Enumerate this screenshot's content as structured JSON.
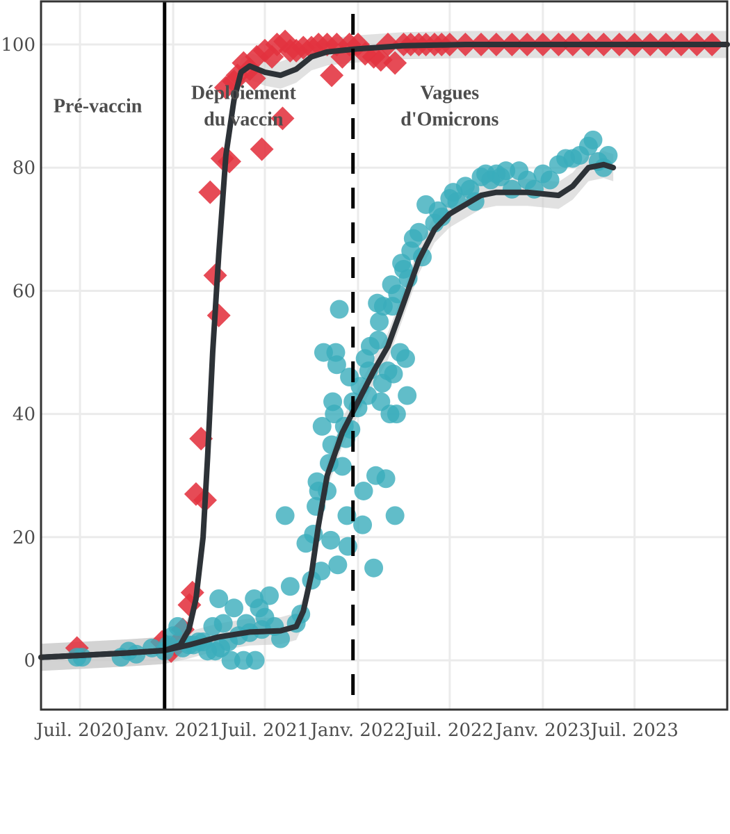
{
  "chart_data": {
    "type": "scatter",
    "title": "",
    "xlabel": "",
    "ylabel": "",
    "xlim": [
      "2020-04-15",
      "2023-12-31"
    ],
    "ylim": [
      -8,
      107
    ],
    "grid": true,
    "legend": "none",
    "x_ticks": [
      {
        "date": "2020-07-01",
        "label": "Juil. 2020"
      },
      {
        "date": "2021-01-01",
        "label": "Janv. 2021"
      },
      {
        "date": "2021-07-01",
        "label": "Juil. 2021"
      },
      {
        "date": "2022-01-01",
        "label": "Janv. 2022"
      },
      {
        "date": "2022-07-01",
        "label": "Juil. 2022"
      },
      {
        "date": "2023-01-01",
        "label": "Janv. 2023"
      },
      {
        "date": "2023-07-01",
        "label": "Juil. 2023"
      }
    ],
    "y_ticks": [
      0,
      20,
      40,
      60,
      80,
      100
    ],
    "vertical_lines": [
      {
        "date": "2020-12-15",
        "style": "solid"
      },
      {
        "date": "2021-12-22",
        "style": "dashed"
      }
    ],
    "annotations": [
      {
        "lines": [
          "Pré-vaccin"
        ],
        "date": "2020-08-05",
        "y": 90
      },
      {
        "lines": [
          "Déploiement",
          "du vaccin"
        ],
        "date": "2021-05-20",
        "y": 90
      },
      {
        "lines": [
          "Vagues",
          "d'Omicrons"
        ],
        "date": "2022-07-01",
        "y": 90
      }
    ],
    "colors": {
      "series_a": "#e3323f",
      "series_b": "#3aadbb",
      "trend": "#2d3237",
      "band": "#c8c8c8"
    },
    "series": [
      {
        "marker": "diamond",
        "color": "#e3323f",
        "points": [
          [
            "2020-06-25",
            2
          ],
          [
            "2020-12-10",
            3
          ],
          [
            "2020-12-28",
            1.5
          ],
          [
            "2021-01-05",
            2.5
          ],
          [
            "2021-01-20",
            5
          ],
          [
            "2021-02-02",
            9
          ],
          [
            "2021-02-08",
            11
          ],
          [
            "2021-02-15",
            27
          ],
          [
            "2021-02-25",
            36
          ],
          [
            "2021-03-05",
            26
          ],
          [
            "2021-03-15",
            76
          ],
          [
            "2021-03-25",
            62.5
          ],
          [
            "2021-04-01",
            56
          ],
          [
            "2021-04-08",
            81.5
          ],
          [
            "2021-04-15",
            93
          ],
          [
            "2021-04-22",
            81
          ],
          [
            "2021-05-01",
            94
          ],
          [
            "2021-05-08",
            95
          ],
          [
            "2021-05-20",
            97
          ],
          [
            "2021-06-01",
            96
          ],
          [
            "2021-06-10",
            94.5
          ],
          [
            "2021-06-15",
            98
          ],
          [
            "2021-06-25",
            83
          ],
          [
            "2021-07-01",
            99
          ],
          [
            "2021-07-15",
            98
          ],
          [
            "2021-07-25",
            100
          ],
          [
            "2021-08-05",
            88
          ],
          [
            "2021-08-10",
            100.5
          ],
          [
            "2021-08-20",
            99
          ],
          [
            "2021-09-01",
            99
          ],
          [
            "2021-09-15",
            99.5
          ],
          [
            "2021-10-01",
            99.5
          ],
          [
            "2021-10-15",
            100
          ],
          [
            "2021-11-01",
            100
          ],
          [
            "2021-11-10",
            95
          ],
          [
            "2021-11-20",
            100
          ],
          [
            "2021-12-01",
            98
          ],
          [
            "2021-12-15",
            100
          ],
          [
            "2022-01-01",
            100
          ],
          [
            "2022-01-15",
            98.5
          ],
          [
            "2022-02-01",
            98
          ],
          [
            "2022-02-15",
            97.5
          ],
          [
            "2022-03-01",
            100
          ],
          [
            "2022-03-15",
            97
          ],
          [
            "2022-04-01",
            100
          ],
          [
            "2022-04-15",
            100
          ],
          [
            "2022-05-01",
            100
          ],
          [
            "2022-05-15",
            100
          ],
          [
            "2022-06-01",
            100
          ],
          [
            "2022-06-15",
            100
          ],
          [
            "2022-07-01",
            100
          ],
          [
            "2022-08-01",
            100
          ],
          [
            "2022-09-01",
            100
          ],
          [
            "2022-10-01",
            100
          ],
          [
            "2022-11-01",
            100
          ],
          [
            "2022-12-01",
            100
          ],
          [
            "2023-01-01",
            100
          ],
          [
            "2023-02-01",
            100
          ],
          [
            "2023-03-01",
            100
          ],
          [
            "2023-04-01",
            100
          ],
          [
            "2023-05-01",
            100
          ],
          [
            "2023-06-01",
            100
          ],
          [
            "2023-07-01",
            100
          ],
          [
            "2023-08-01",
            100
          ],
          [
            "2023-09-01",
            100
          ],
          [
            "2023-10-01",
            100
          ],
          [
            "2023-11-01",
            100
          ],
          [
            "2023-12-01",
            100
          ]
        ]
      },
      {
        "marker": "circle",
        "color": "#3aadbb",
        "points": [
          [
            "2020-06-25",
            0.5
          ],
          [
            "2020-07-05",
            0.5
          ],
          [
            "2020-09-20",
            0.5
          ],
          [
            "2020-10-05",
            1.5
          ],
          [
            "2020-10-20",
            1
          ],
          [
            "2020-11-20",
            2
          ],
          [
            "2020-12-15",
            1.5
          ],
          [
            "2020-12-22",
            2.5
          ],
          [
            "2021-01-01",
            4
          ],
          [
            "2021-01-10",
            5.5
          ],
          [
            "2021-01-20",
            2
          ],
          [
            "2021-02-01",
            2.5
          ],
          [
            "2021-02-10",
            2.5
          ],
          [
            "2021-02-20",
            3
          ],
          [
            "2021-03-01",
            3
          ],
          [
            "2021-03-10",
            1.5
          ],
          [
            "2021-03-20",
            5.5
          ],
          [
            "2021-03-25",
            1.5
          ],
          [
            "2021-04-01",
            10
          ],
          [
            "2021-04-05",
            2
          ],
          [
            "2021-04-10",
            6
          ],
          [
            "2021-04-20",
            3
          ],
          [
            "2021-04-25",
            0
          ],
          [
            "2021-05-01",
            8.5
          ],
          [
            "2021-05-10",
            4
          ],
          [
            "2021-05-20",
            0
          ],
          [
            "2021-05-25",
            6
          ],
          [
            "2021-06-01",
            4.5
          ],
          [
            "2021-06-10",
            10
          ],
          [
            "2021-06-12",
            0
          ],
          [
            "2021-06-20",
            8.5
          ],
          [
            "2021-06-25",
            5
          ],
          [
            "2021-07-01",
            7
          ],
          [
            "2021-07-10",
            10.5
          ],
          [
            "2021-07-20",
            5.5
          ],
          [
            "2021-08-01",
            3.5
          ],
          [
            "2021-08-10",
            23.5
          ],
          [
            "2021-08-20",
            12
          ],
          [
            "2021-09-01",
            6
          ],
          [
            "2021-09-10",
            7.5
          ],
          [
            "2021-09-20",
            19
          ],
          [
            "2021-10-01",
            13
          ],
          [
            "2021-10-05",
            20.5
          ],
          [
            "2021-10-10",
            25
          ],
          [
            "2021-10-12",
            29
          ],
          [
            "2021-10-15",
            27.5
          ],
          [
            "2021-10-20",
            14.5
          ],
          [
            "2021-10-22",
            38
          ],
          [
            "2021-10-25",
            50
          ],
          [
            "2021-11-01",
            27.5
          ],
          [
            "2021-11-05",
            32
          ],
          [
            "2021-11-08",
            19.5
          ],
          [
            "2021-11-10",
            35
          ],
          [
            "2021-11-12",
            42
          ],
          [
            "2021-11-15",
            40
          ],
          [
            "2021-11-18",
            50
          ],
          [
            "2021-11-20",
            48
          ],
          [
            "2021-11-22",
            15.5
          ],
          [
            "2021-11-25",
            57
          ],
          [
            "2021-12-01",
            31.5
          ],
          [
            "2021-12-05",
            38
          ],
          [
            "2021-12-08",
            36
          ],
          [
            "2021-12-10",
            23.5
          ],
          [
            "2021-12-12",
            18.5
          ],
          [
            "2021-12-15",
            46
          ],
          [
            "2021-12-18",
            37.5
          ],
          [
            "2021-12-22",
            42
          ],
          [
            "2022-01-01",
            41
          ],
          [
            "2022-01-05",
            44.5
          ],
          [
            "2022-01-10",
            22
          ],
          [
            "2022-01-12",
            27.5
          ],
          [
            "2022-01-15",
            49
          ],
          [
            "2022-01-20",
            43
          ],
          [
            "2022-01-22",
            47
          ],
          [
            "2022-01-25",
            51
          ],
          [
            "2022-02-01",
            15
          ],
          [
            "2022-02-05",
            30
          ],
          [
            "2022-02-08",
            58
          ],
          [
            "2022-02-10",
            52
          ],
          [
            "2022-02-12",
            55
          ],
          [
            "2022-02-15",
            42
          ],
          [
            "2022-02-18",
            45
          ],
          [
            "2022-02-20",
            57.5
          ],
          [
            "2022-02-25",
            29.5
          ],
          [
            "2022-03-01",
            47
          ],
          [
            "2022-03-05",
            40
          ],
          [
            "2022-03-08",
            61
          ],
          [
            "2022-03-10",
            57.5
          ],
          [
            "2022-03-12",
            46.5
          ],
          [
            "2022-03-15",
            23.5
          ],
          [
            "2022-03-18",
            40
          ],
          [
            "2022-03-20",
            59.5
          ],
          [
            "2022-03-25",
            50
          ],
          [
            "2022-03-28",
            64.5
          ],
          [
            "2022-04-01",
            63.5
          ],
          [
            "2022-04-05",
            49
          ],
          [
            "2022-04-08",
            43
          ],
          [
            "2022-04-10",
            62
          ],
          [
            "2022-04-15",
            66.5
          ],
          [
            "2022-04-20",
            68.5
          ],
          [
            "2022-05-01",
            69.5
          ],
          [
            "2022-05-08",
            65.5
          ],
          [
            "2022-05-15",
            74
          ],
          [
            "2022-06-01",
            71
          ],
          [
            "2022-06-08",
            73
          ],
          [
            "2022-06-15",
            72
          ],
          [
            "2022-07-01",
            75
          ],
          [
            "2022-07-08",
            76
          ],
          [
            "2022-07-15",
            74.5
          ],
          [
            "2022-08-01",
            77
          ],
          [
            "2022-08-10",
            76.5
          ],
          [
            "2022-08-20",
            74.5
          ],
          [
            "2022-09-01",
            78.5
          ],
          [
            "2022-09-10",
            79
          ],
          [
            "2022-09-20",
            78
          ],
          [
            "2022-10-01",
            79
          ],
          [
            "2022-10-10",
            78.5
          ],
          [
            "2022-10-20",
            79.5
          ],
          [
            "2022-11-01",
            76.5
          ],
          [
            "2022-11-15",
            79.5
          ],
          [
            "2022-12-01",
            78
          ],
          [
            "2022-12-15",
            76.5
          ],
          [
            "2023-01-01",
            79
          ],
          [
            "2023-01-15",
            78
          ],
          [
            "2023-02-01",
            80.5
          ],
          [
            "2023-02-15",
            81.5
          ],
          [
            "2023-03-01",
            81.5
          ],
          [
            "2023-03-15",
            82
          ],
          [
            "2023-04-01",
            83.5
          ],
          [
            "2023-04-10",
            84.5
          ],
          [
            "2023-04-20",
            81
          ],
          [
            "2023-05-01",
            80
          ],
          [
            "2023-05-10",
            82
          ]
        ]
      }
    ],
    "trend_lines": [
      {
        "color": "#2d3237",
        "band": true,
        "points": [
          [
            "2020-04-15",
            0.5
          ],
          [
            "2020-07-01",
            0.8
          ],
          [
            "2020-10-01",
            1.2
          ],
          [
            "2020-12-15",
            1.6
          ],
          [
            "2021-01-15",
            2.5
          ],
          [
            "2021-02-01",
            5
          ],
          [
            "2021-02-15",
            10
          ],
          [
            "2021-03-01",
            20
          ],
          [
            "2021-03-10",
            33
          ],
          [
            "2021-03-20",
            50
          ],
          [
            "2021-04-01",
            66
          ],
          [
            "2021-04-15",
            82
          ],
          [
            "2021-05-01",
            91
          ],
          [
            "2021-05-15",
            95.5
          ],
          [
            "2021-06-01",
            96.5
          ],
          [
            "2021-07-01",
            95.5
          ],
          [
            "2021-08-01",
            95
          ],
          [
            "2021-09-01",
            96
          ],
          [
            "2021-10-01",
            98
          ],
          [
            "2021-11-01",
            98.8
          ],
          [
            "2022-01-01",
            99.3
          ],
          [
            "2022-04-01",
            99.8
          ],
          [
            "2022-08-01",
            100
          ],
          [
            "2023-12-31",
            100
          ]
        ]
      },
      {
        "color": "#2d3237",
        "band": true,
        "points": [
          [
            "2020-04-15",
            0.5
          ],
          [
            "2020-07-01",
            0.8
          ],
          [
            "2020-10-01",
            1.2
          ],
          [
            "2020-12-15",
            1.6
          ],
          [
            "2021-02-01",
            2.5
          ],
          [
            "2021-04-01",
            3.8
          ],
          [
            "2021-06-01",
            4.6
          ],
          [
            "2021-08-01",
            4.8
          ],
          [
            "2021-09-01",
            5.5
          ],
          [
            "2021-09-15",
            8
          ],
          [
            "2021-10-01",
            14
          ],
          [
            "2021-10-15",
            22
          ],
          [
            "2021-11-01",
            30
          ],
          [
            "2021-12-01",
            37
          ],
          [
            "2022-01-01",
            42
          ],
          [
            "2022-02-01",
            47
          ],
          [
            "2022-03-01",
            51
          ],
          [
            "2022-04-01",
            58
          ],
          [
            "2022-05-01",
            65
          ],
          [
            "2022-06-01",
            70
          ],
          [
            "2022-07-01",
            72.5
          ],
          [
            "2022-08-01",
            74
          ],
          [
            "2022-09-01",
            75.5
          ],
          [
            "2022-10-01",
            76
          ],
          [
            "2022-12-01",
            76
          ],
          [
            "2023-02-01",
            75.5
          ],
          [
            "2023-03-01",
            77
          ],
          [
            "2023-04-01",
            80
          ],
          [
            "2023-05-01",
            80.5
          ],
          [
            "2023-05-20",
            80
          ]
        ]
      }
    ]
  }
}
